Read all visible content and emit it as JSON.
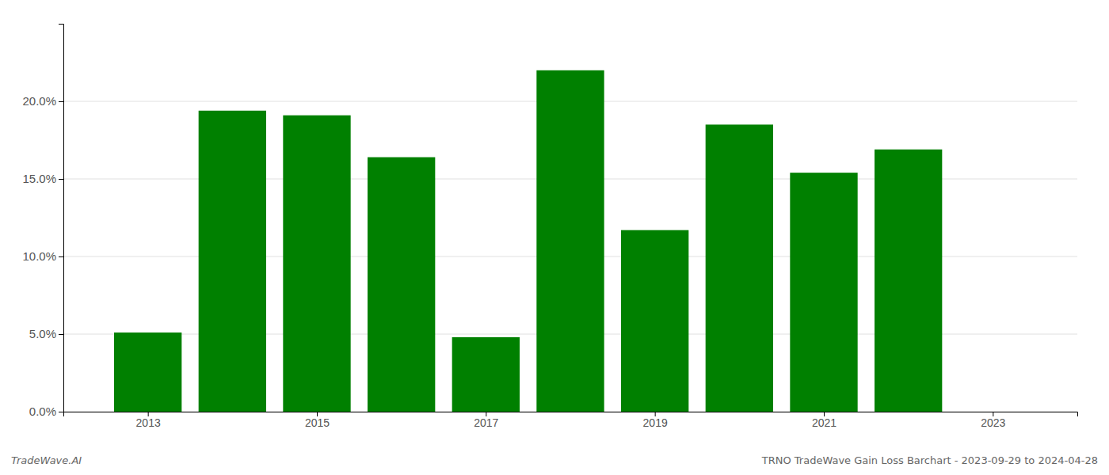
{
  "chart_data": {
    "type": "bar",
    "title": "TRNO TradeWave Gain Loss Barchart - 2023-09-29 to 2024-04-28",
    "annotations": [
      "TradeWave.AI"
    ],
    "x": [
      2013,
      2014,
      2015,
      2016,
      2017,
      2018,
      2019,
      2020,
      2021,
      2022
    ],
    "values": [
      0.051,
      0.194,
      0.191,
      0.164,
      0.048,
      0.22,
      0.117,
      0.185,
      0.154,
      0.169
    ],
    "color": "#008000",
    "xlim": [
      2012.0,
      2024.0
    ],
    "xticks": [
      2013,
      2015,
      2017,
      2019,
      2021,
      2023
    ],
    "ylim": [
      0,
      0.25
    ],
    "yticks": [
      {
        "value": 0.0,
        "label": "0.0%"
      },
      {
        "value": 0.05,
        "label": "5.0%"
      },
      {
        "value": 0.1,
        "label": "10.0%"
      },
      {
        "value": 0.15,
        "label": "15.0%"
      },
      {
        "value": 0.2,
        "label": "20.0%"
      }
    ],
    "grid": true
  }
}
